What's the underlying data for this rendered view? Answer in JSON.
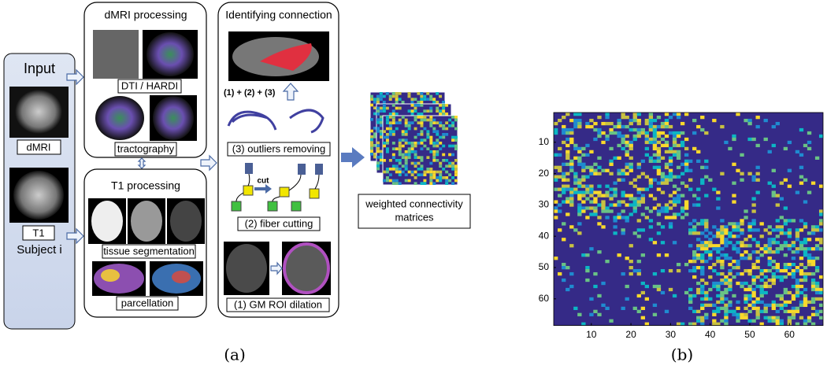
{
  "panel_a": {
    "input": {
      "title": "Input",
      "dmri": "dMRI",
      "t1": "T1",
      "subject": "Subject i"
    },
    "dmri_processing": {
      "title": "dMRI processing",
      "dti": "DTI / HARDI",
      "tractography": "tractography"
    },
    "t1_processing": {
      "title": "T1 processing",
      "segmentation": "tissue segmentation",
      "parcellation": "parcellation"
    },
    "identifying": {
      "title": "Identifying connection",
      "combine": "(1) + (2) + (3)",
      "step3": "(3) outliers removing",
      "cut": "cut",
      "step2": "(2) fiber cutting",
      "step1": "(1) GM ROI dilation"
    },
    "output": [
      "weighted connectivity",
      "matrices"
    ],
    "label": "(a)"
  },
  "panel_b": {
    "xlim": [
      0.5,
      68.5
    ],
    "ylim": [
      0.5,
      68.5
    ],
    "xticks": [
      10,
      20,
      30,
      40,
      50,
      60
    ],
    "yticks": [
      10,
      20,
      30,
      40,
      50,
      60
    ],
    "label": "(b)"
  }
}
